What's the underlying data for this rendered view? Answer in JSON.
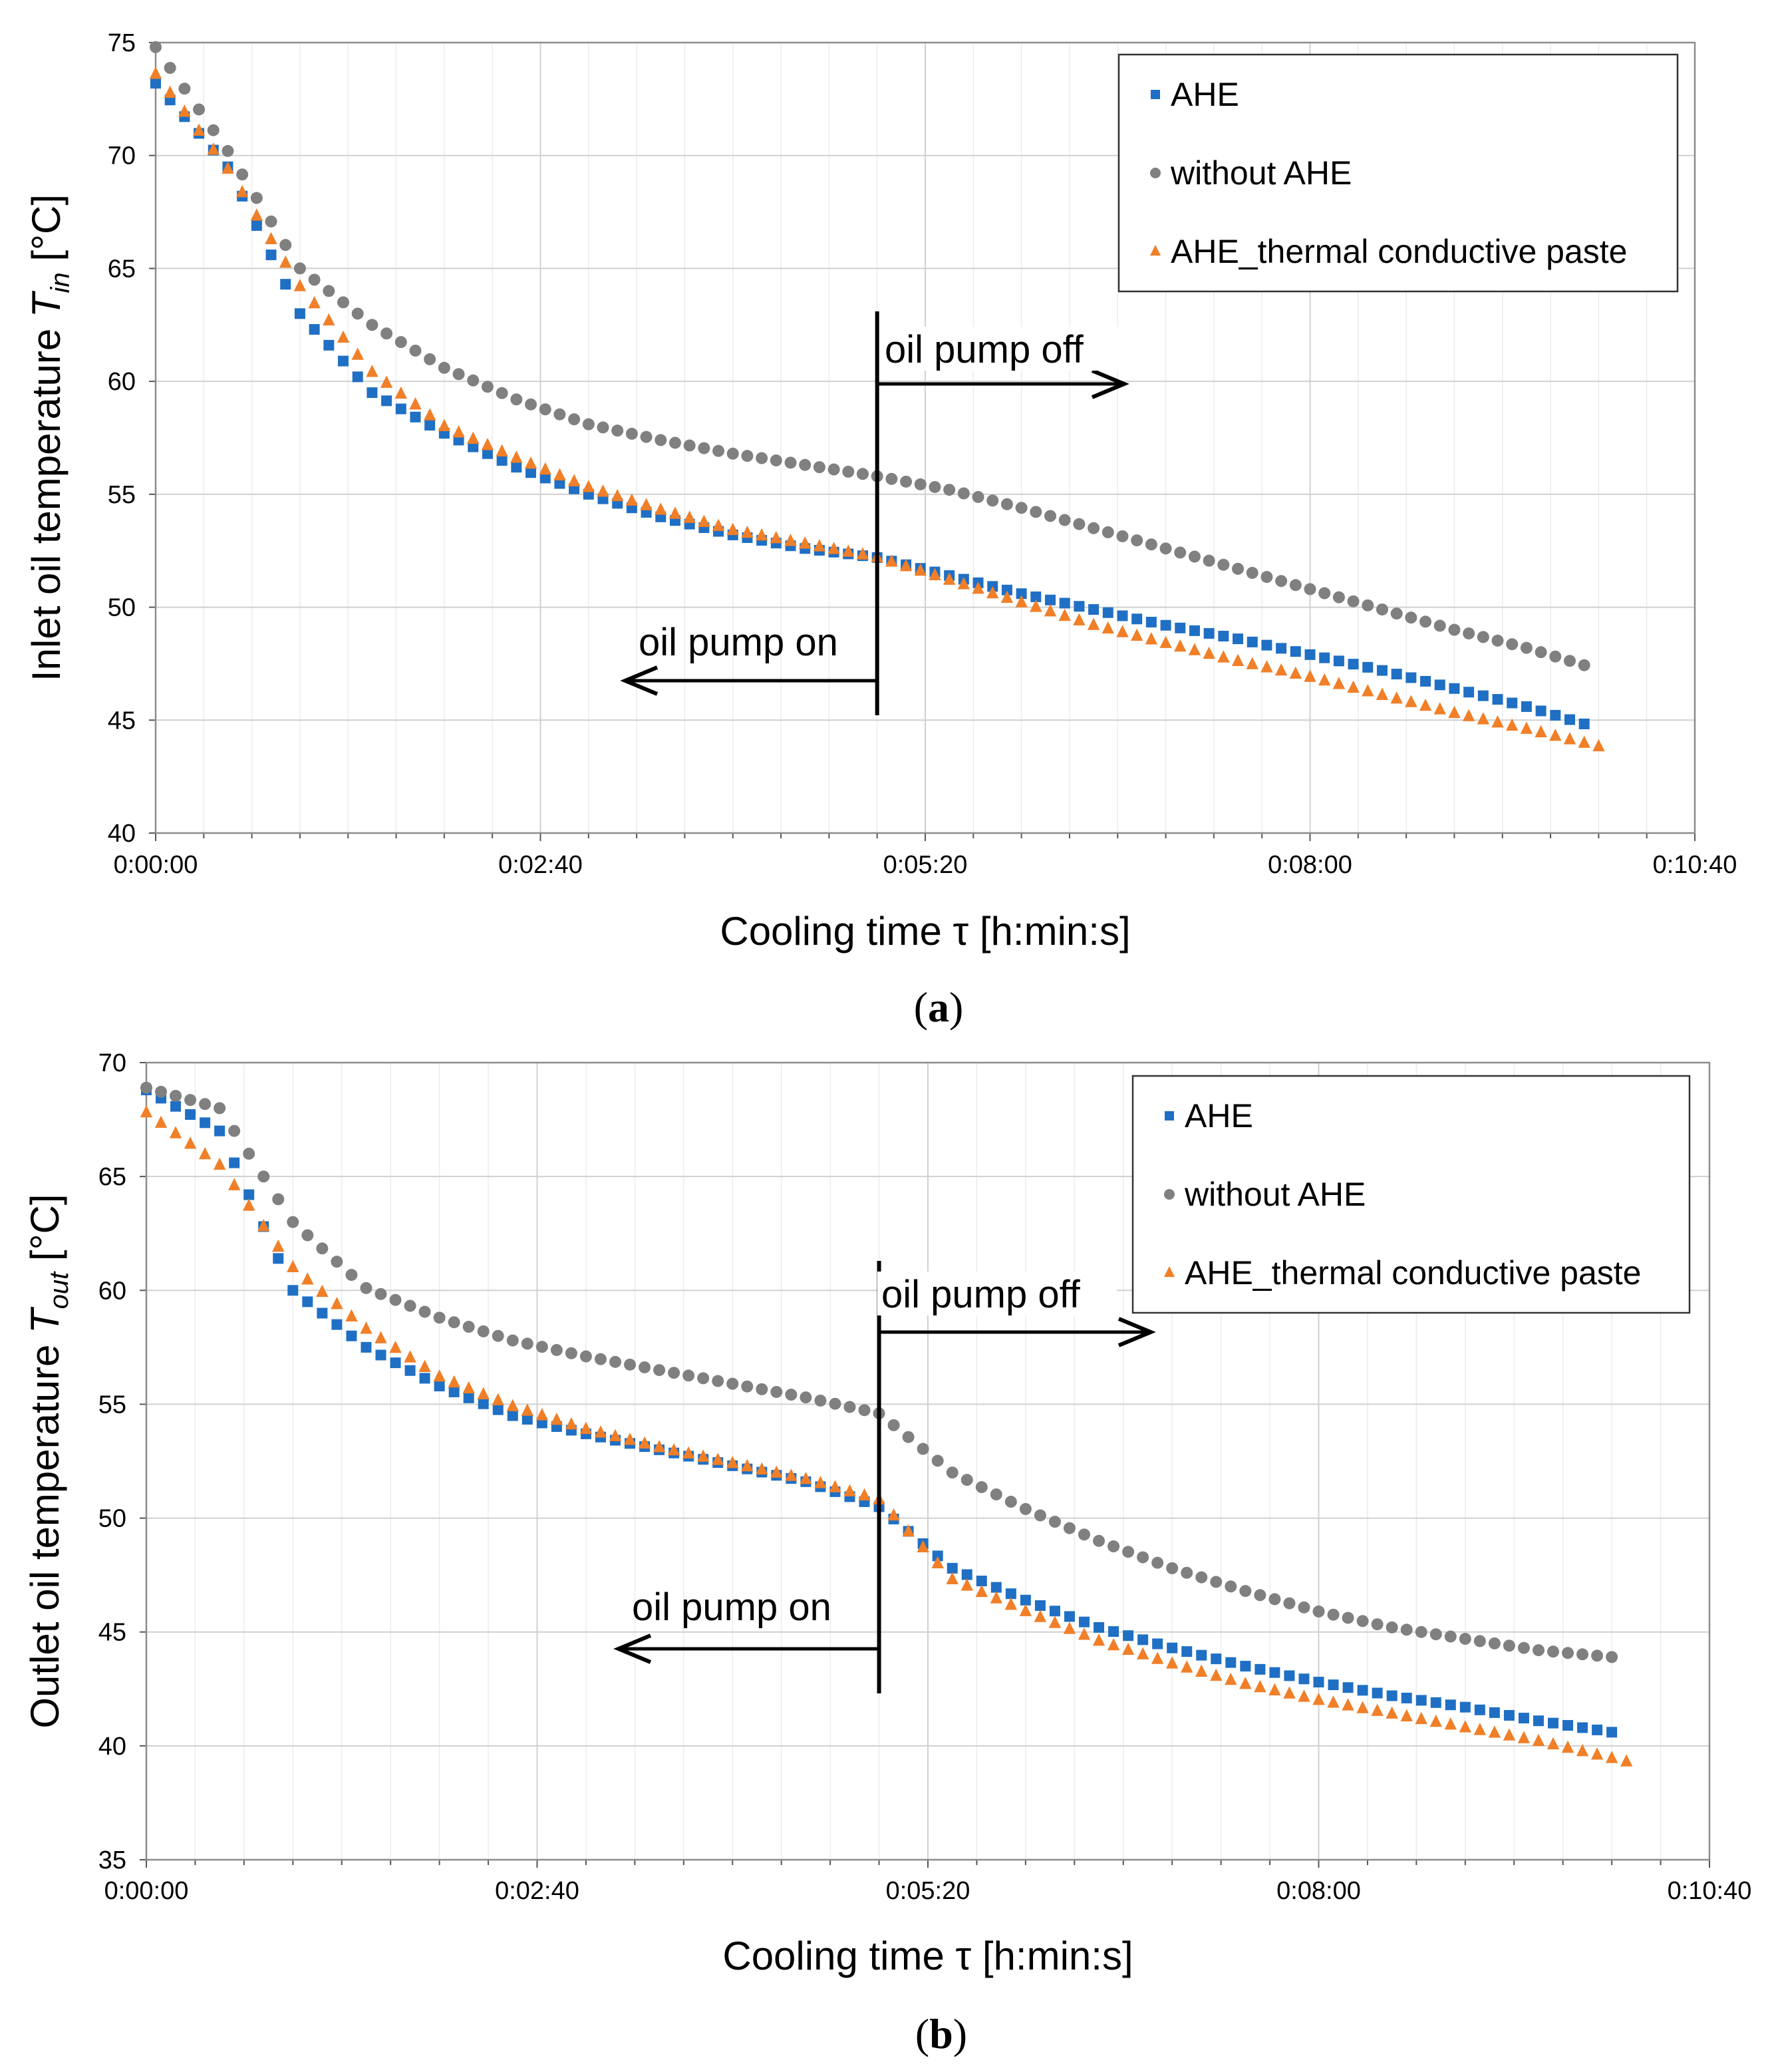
{
  "colors": {
    "AHE": "#1f6fc4",
    "without_AHE": "#808080",
    "AHE_paste": "#f07f28"
  },
  "chart_data": [
    {
      "id": "a",
      "type": "scatter",
      "panel_label": "a",
      "xlabel": "Cooling time τ [h:min:s]",
      "ylabel_prefix": "Inlet oil temperature ",
      "ylabel_symbol": "T",
      "ylabel_sub": "in",
      "ylabel_suffix": " [°C]",
      "x_unit": "seconds",
      "xlim": [
        0,
        640
      ],
      "ylim": [
        40,
        75
      ],
      "xticks": [
        0,
        160,
        320,
        480,
        640
      ],
      "xtick_labels": [
        "0:00:00",
        "0:02:40",
        "0:05:20",
        "0:08:00",
        "0:10:40"
      ],
      "yticks": [
        40,
        45,
        50,
        55,
        60,
        65,
        70,
        75
      ],
      "ytick_labels": [
        "40",
        "45",
        "50",
        "55",
        "60",
        "65",
        "70",
        "75"
      ],
      "grid": true,
      "legend": [
        "AHE",
        "without AHE",
        "AHE_thermal conductive paste"
      ],
      "legend_position": "top-right",
      "annotations": {
        "pump_off": "oil pump off",
        "pump_on": "oil pump on",
        "pump_switch_time": 300
      },
      "series": [
        {
          "name": "AHE",
          "marker": "square",
          "color_key": "AHE",
          "x_end": 595,
          "step": 6,
          "x": [
            0,
            30,
            60,
            90,
            120,
            150,
            180,
            210,
            240,
            270,
            300,
            330,
            360,
            390,
            420,
            450,
            480,
            510,
            540,
            570,
            595
          ],
          "y": [
            73.2,
            69.5,
            63.0,
            59.5,
            57.7,
            56.2,
            55.0,
            54.0,
            53.2,
            52.6,
            52.2,
            51.4,
            50.6,
            49.9,
            49.2,
            48.6,
            47.9,
            47.2,
            46.4,
            45.6,
            44.8
          ]
        },
        {
          "name": "without AHE",
          "marker": "circle",
          "color_key": "without_AHE",
          "x_end": 595,
          "step": 6,
          "x": [
            0,
            30,
            60,
            90,
            120,
            150,
            180,
            210,
            240,
            270,
            300,
            330,
            360,
            390,
            420,
            450,
            480,
            510,
            540,
            570,
            595
          ],
          "y": [
            74.8,
            70.2,
            65.0,
            62.5,
            60.6,
            59.2,
            58.1,
            57.4,
            56.8,
            56.3,
            55.8,
            55.2,
            54.4,
            53.5,
            52.6,
            51.7,
            50.8,
            49.9,
            49.0,
            48.2,
            47.4
          ]
        },
        {
          "name": "AHE_thermal conductive paste",
          "marker": "triangle",
          "color_key": "AHE_paste",
          "x_end": 601,
          "step": 6,
          "x": [
            0,
            30,
            60,
            90,
            120,
            150,
            180,
            210,
            240,
            270,
            300,
            330,
            360,
            390,
            420,
            450,
            480,
            510,
            540,
            570,
            601
          ],
          "y": [
            73.6,
            69.4,
            64.2,
            60.4,
            58.0,
            56.6,
            55.3,
            54.3,
            53.4,
            52.8,
            52.2,
            51.2,
            50.2,
            49.2,
            48.4,
            47.6,
            46.9,
            46.1,
            45.3,
            44.6,
            43.8
          ]
        }
      ]
    },
    {
      "id": "b",
      "type": "scatter",
      "panel_label": "b",
      "xlabel": "Cooling time τ [h:min:s]",
      "ylabel_prefix": "Outlet oil temperature ",
      "ylabel_symbol": "T",
      "ylabel_sub": "out",
      "ylabel_suffix": " [°C]",
      "x_unit": "seconds",
      "xlim": [
        0,
        640
      ],
      "ylim": [
        35,
        70
      ],
      "xticks": [
        0,
        160,
        320,
        480,
        640
      ],
      "xtick_labels": [
        "0:00:00",
        "0:02:40",
        "0:05:20",
        "0:08:00",
        "0:10:40"
      ],
      "yticks": [
        35,
        40,
        45,
        50,
        55,
        60,
        65,
        70
      ],
      "ytick_labels": [
        "35",
        "40",
        "45",
        "50",
        "55",
        "60",
        "65",
        "70"
      ],
      "grid": true,
      "legend": [
        "AHE",
        "without AHE",
        "AHE_thermal conductive paste"
      ],
      "legend_position": "top-right",
      "annotations": {
        "pump_off": "oil pump off",
        "pump_on": "oil pump on",
        "pump_switch_time": 300
      },
      "series": [
        {
          "name": "AHE",
          "marker": "square",
          "color_key": "AHE",
          "x_end": 600,
          "step": 6,
          "x": [
            0,
            30,
            60,
            90,
            120,
            150,
            180,
            210,
            240,
            270,
            300,
            330,
            360,
            390,
            420,
            450,
            480,
            510,
            540,
            570,
            600
          ],
          "y": [
            68.8,
            67.0,
            60.0,
            57.5,
            55.8,
            54.5,
            53.7,
            53.0,
            52.3,
            51.6,
            50.5,
            47.8,
            46.4,
            45.2,
            44.3,
            43.5,
            42.8,
            42.2,
            41.7,
            41.1,
            40.6
          ]
        },
        {
          "name": "without AHE",
          "marker": "circle",
          "color_key": "without_AHE",
          "x_end": 600,
          "step": 6,
          "x": [
            0,
            30,
            60,
            90,
            120,
            150,
            180,
            210,
            240,
            270,
            300,
            330,
            360,
            390,
            420,
            450,
            480,
            510,
            540,
            570,
            600
          ],
          "y": [
            68.9,
            68.0,
            63.0,
            60.1,
            58.8,
            57.8,
            57.1,
            56.5,
            55.9,
            55.3,
            54.6,
            52.0,
            50.4,
            49.0,
            47.8,
            46.8,
            45.9,
            45.2,
            44.7,
            44.2,
            43.9
          ]
        },
        {
          "name": "AHE_thermal conductive paste",
          "marker": "triangle",
          "color_key": "AHE_paste",
          "x_end": 606,
          "step": 6,
          "x": [
            0,
            30,
            60,
            90,
            120,
            150,
            180,
            210,
            240,
            270,
            300,
            330,
            360,
            390,
            420,
            450,
            480,
            510,
            540,
            570,
            606
          ],
          "y": [
            67.8,
            65.5,
            61.0,
            58.3,
            56.2,
            54.9,
            53.9,
            53.1,
            52.4,
            51.7,
            50.8,
            47.3,
            45.9,
            44.6,
            43.6,
            42.7,
            42.0,
            41.4,
            40.8,
            40.2,
            39.3
          ]
        }
      ]
    }
  ]
}
